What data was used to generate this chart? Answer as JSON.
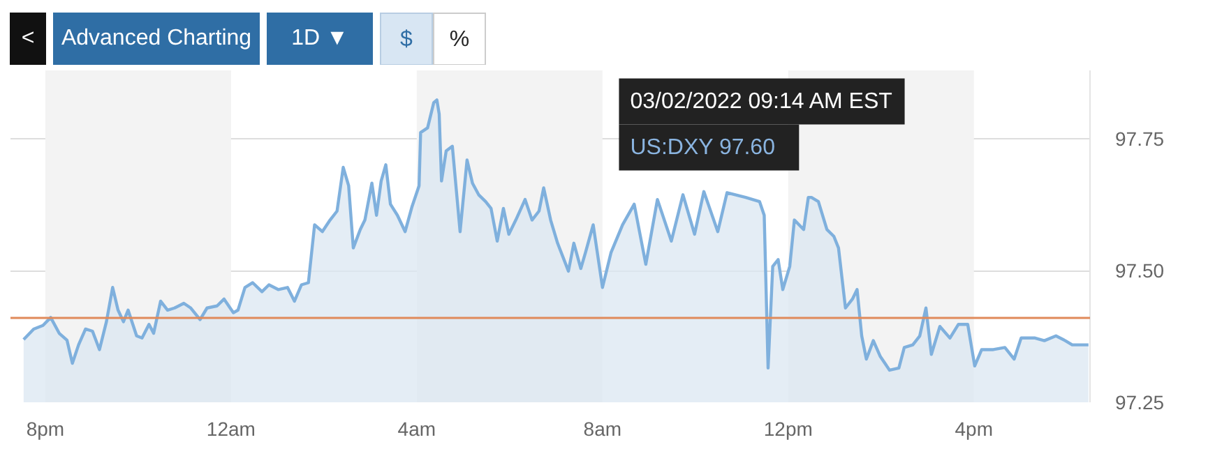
{
  "chart_data": {
    "type": "area",
    "x": [
      "2022-03-01T19:32",
      "2022-03-01T19:45",
      "2022-03-01T19:57",
      "2022-03-01T20:07",
      "2022-03-01T20:18",
      "2022-03-01T20:28",
      "2022-03-01T20:35",
      "2022-03-01T20:43",
      "2022-03-01T20:52",
      "2022-03-01T21:01",
      "2022-03-01T21:10",
      "2022-03-01T21:19",
      "2022-03-01T21:27",
      "2022-03-01T21:34",
      "2022-03-01T21:41",
      "2022-03-01T21:47",
      "2022-03-01T21:58",
      "2022-03-01T22:05",
      "2022-03-01T22:14",
      "2022-03-01T22:20",
      "2022-03-01T22:29",
      "2022-03-01T22:38",
      "2022-03-01T22:47",
      "2022-03-01T22:59",
      "2022-03-01T23:08",
      "2022-03-01T23:20",
      "2022-03-01T23:29",
      "2022-03-01T23:42",
      "2022-03-01T23:51",
      "2022-03-02T00:03",
      "2022-03-02T00:09",
      "2022-03-02T00:18",
      "2022-03-02T00:28",
      "2022-03-02T00:40",
      "2022-03-02T00:49",
      "2022-03-02T01:01",
      "2022-03-02T01:13",
      "2022-03-02T01:22",
      "2022-03-02T01:31",
      "2022-03-02T01:40",
      "2022-03-02T01:48",
      "2022-03-02T01:58",
      "2022-03-02T02:08",
      "2022-03-02T02:17",
      "2022-03-02T02:25",
      "2022-03-02T02:32",
      "2022-03-02T02:38",
      "2022-03-02T02:47",
      "2022-03-02T02:53",
      "2022-03-02T03:02",
      "2022-03-02T03:08",
      "2022-03-02T03:14",
      "2022-03-02T03:20",
      "2022-03-02T03:26",
      "2022-03-02T03:35",
      "2022-03-02T03:45",
      "2022-03-02T03:54",
      "2022-03-02T04:03",
      "2022-03-02T04:05",
      "2022-03-02T04:14",
      "2022-03-02T04:22",
      "2022-03-02T04:26",
      "2022-03-02T04:29",
      "2022-03-02T04:32",
      "2022-03-02T04:38",
      "2022-03-02T04:46",
      "2022-03-02T04:56",
      "2022-03-02T05:05",
      "2022-03-02T05:12",
      "2022-03-02T05:20",
      "2022-03-02T05:29",
      "2022-03-02T05:36",
      "2022-03-02T05:44",
      "2022-03-02T05:52",
      "2022-03-02T05:59",
      "2022-03-02T06:08",
      "2022-03-02T06:20",
      "2022-03-02T06:29",
      "2022-03-02T06:38",
      "2022-03-02T06:44",
      "2022-03-02T06:53",
      "2022-03-02T07:02",
      "2022-03-02T07:16",
      "2022-03-02T07:23",
      "2022-03-02T07:32",
      "2022-03-02T07:38",
      "2022-03-02T07:48",
      "2022-03-02T08:00",
      "2022-03-02T08:11",
      "2022-03-02T08:26",
      "2022-03-02T08:41",
      "2022-03-02T08:56",
      "2022-03-02T09:11",
      "2022-03-02T09:29",
      "2022-03-02T09:44",
      "2022-03-02T09:59",
      "2022-03-02T10:11",
      "2022-03-02T10:29",
      "2022-03-02T10:41",
      "2022-03-02T11:05",
      "2022-03-02T11:23",
      "2022-03-02T11:29",
      "2022-03-02T11:34",
      "2022-03-02T11:40",
      "2022-03-02T11:47",
      "2022-03-02T11:53",
      "2022-03-02T12:02",
      "2022-03-02T12:08",
      "2022-03-02T12:20",
      "2022-03-02T12:26",
      "2022-03-02T12:30",
      "2022-03-02T12:39",
      "2022-03-02T12:50",
      "2022-03-02T12:59",
      "2022-03-02T13:05",
      "2022-03-02T13:14",
      "2022-03-02T13:23",
      "2022-03-02T13:29",
      "2022-03-02T13:35",
      "2022-03-02T13:41",
      "2022-03-02T13:50",
      "2022-03-02T13:59",
      "2022-03-02T14:11",
      "2022-03-02T14:23",
      "2022-03-02T14:30",
      "2022-03-02T14:41",
      "2022-03-02T14:50",
      "2022-03-02T14:58",
      "2022-03-02T15:05",
      "2022-03-02T15:16",
      "2022-03-02T15:29",
      "2022-03-02T15:40",
      "2022-03-02T15:52",
      "2022-03-02T16:01",
      "2022-03-02T16:10",
      "2022-03-02T16:25",
      "2022-03-02T16:40",
      "2022-03-02T16:52",
      "2022-03-02T17:01",
      "2022-03-02T17:19",
      "2022-03-02T17:31",
      "2022-03-02T17:46",
      "2022-03-02T17:58",
      "2022-03-02T18:07",
      "2022-03-02T18:28"
    ],
    "series": [
      {
        "color": "#7fb0dd",
        "values": [
          97.369,
          97.389,
          97.396,
          97.411,
          97.381,
          97.368,
          97.324,
          97.359,
          97.389,
          97.385,
          97.35,
          97.403,
          97.468,
          97.425,
          97.403,
          97.425,
          97.376,
          97.372,
          97.398,
          97.381,
          97.442,
          97.425,
          97.429,
          97.438,
          97.429,
          97.407,
          97.429,
          97.433,
          97.446,
          97.42,
          97.425,
          97.468,
          97.477,
          97.46,
          97.473,
          97.464,
          97.468,
          97.442,
          97.473,
          97.477,
          97.587,
          97.574,
          97.596,
          97.613,
          97.696,
          97.661,
          97.543,
          97.578,
          97.596,
          97.666,
          97.605,
          97.67,
          97.701,
          97.626,
          97.605,
          97.574,
          97.622,
          97.661,
          97.762,
          97.771,
          97.819,
          97.824,
          97.797,
          97.67,
          97.727,
          97.736,
          97.574,
          97.71,
          97.666,
          97.644,
          97.631,
          97.618,
          97.556,
          97.618,
          97.569,
          97.596,
          97.635,
          97.596,
          97.613,
          97.657,
          97.596,
          97.552,
          97.499,
          97.552,
          97.504,
          97.534,
          97.587,
          97.468,
          97.534,
          97.587,
          97.626,
          97.512,
          97.635,
          97.556,
          97.644,
          97.569,
          97.65,
          97.574,
          97.648,
          97.639,
          97.631,
          97.605,
          97.315,
          97.508,
          97.521,
          97.464,
          97.508,
          97.596,
          97.578,
          97.639,
          97.639,
          97.631,
          97.578,
          97.565,
          97.543,
          97.429,
          97.446,
          97.464,
          97.376,
          97.332,
          97.367,
          97.337,
          97.311,
          97.315,
          97.354,
          97.359,
          97.376,
          97.429,
          97.341,
          97.394,
          97.372,
          97.398,
          97.398,
          97.319,
          97.35,
          97.35,
          97.354,
          97.332,
          97.372,
          97.372,
          97.367,
          97.376,
          97.367,
          97.359,
          97.359
        ]
      }
    ],
    "xlim": [
      "2022-03-01T19:15",
      "2022-03-02T18:30"
    ],
    "xticks": [
      {
        "value": "2022-03-01T20:00",
        "label": "8pm"
      },
      {
        "value": "2022-03-02T00:00",
        "label": "12am"
      },
      {
        "value": "2022-03-02T04:00",
        "label": "4am"
      },
      {
        "value": "2022-03-02T08:00",
        "label": "8am"
      },
      {
        "value": "2022-03-02T12:00",
        "label": "12pm"
      },
      {
        "value": "2022-03-02T16:00",
        "label": "4pm"
      }
    ],
    "ylim": [
      97.25,
      97.88
    ],
    "yticks": [
      {
        "value": 97.25,
        "label": "97.25"
      },
      {
        "value": 97.5,
        "label": "97.50"
      },
      {
        "value": 97.75,
        "label": "97.75"
      }
    ],
    "grid": "y",
    "ref_lines": [
      {
        "axis": "y",
        "value": 97.41,
        "color": "#e08a5a"
      }
    ],
    "bands": [
      {
        "axis": "x",
        "from": "2022-03-01T20:00",
        "to": "2022-03-02T00:00",
        "color": "#f3f3f3"
      },
      {
        "axis": "x",
        "from": "2022-03-02T04:00",
        "to": "2022-03-02T08:00",
        "color": "#f3f3f3"
      },
      {
        "axis": "x",
        "from": "2022-03-02T12:00",
        "to": "2022-03-02T16:00",
        "color": "#f3f3f3"
      }
    ],
    "annotations": [
      "<",
      "Advanced Charting",
      "1D ▼",
      "$",
      "%",
      {
        "text": "03/02/2022 09:14 AM EST\nUS:DXY   97.60",
        "x": "2022-03-02T11:29",
        "y": 97.6
      }
    ]
  }
}
